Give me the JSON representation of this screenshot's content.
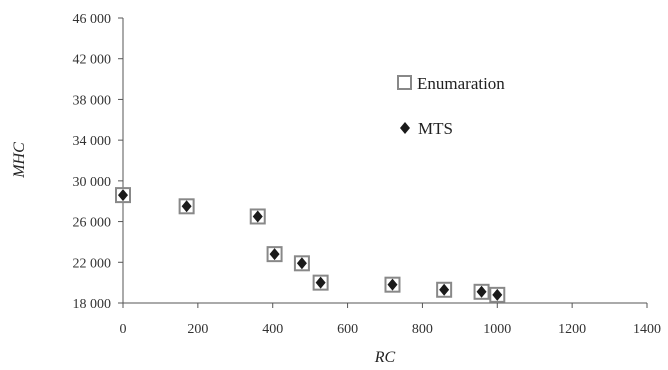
{
  "chart_data": {
    "type": "scatter",
    "xlabel": "RC",
    "ylabel": "MHC",
    "xlim": [
      0,
      1400
    ],
    "ylim": [
      18000,
      46000
    ],
    "x_ticks": [
      0,
      200,
      400,
      600,
      800,
      1000,
      1200,
      1400
    ],
    "x_tick_labels": [
      "0",
      "200",
      "400",
      "600",
      "800",
      "1000",
      "1200",
      "1400"
    ],
    "y_ticks": [
      18000,
      22000,
      26000,
      30000,
      34000,
      38000,
      42000,
      46000
    ],
    "y_tick_labels": [
      "18 000",
      "22 000",
      "26 000",
      "30 000",
      "34 000",
      "38 000",
      "42 000",
      "46 000"
    ],
    "grid": false,
    "legend_position": "right",
    "series": [
      {
        "name": "Enumaration",
        "marker": "square-open",
        "color": "#888888",
        "x": [
          0,
          170,
          360,
          405,
          478,
          528,
          720,
          858,
          958,
          1000
        ],
        "y": [
          28600,
          27500,
          26500,
          22800,
          21900,
          20000,
          19800,
          19300,
          19100,
          18800
        ]
      },
      {
        "name": "MTS",
        "marker": "diamond-filled",
        "color": "#1a1a1a",
        "x": [
          0,
          170,
          360,
          405,
          478,
          528,
          720,
          858,
          958,
          1000
        ],
        "y": [
          28600,
          27500,
          26500,
          22800,
          21900,
          20000,
          19800,
          19300,
          19100,
          18800
        ]
      }
    ]
  }
}
